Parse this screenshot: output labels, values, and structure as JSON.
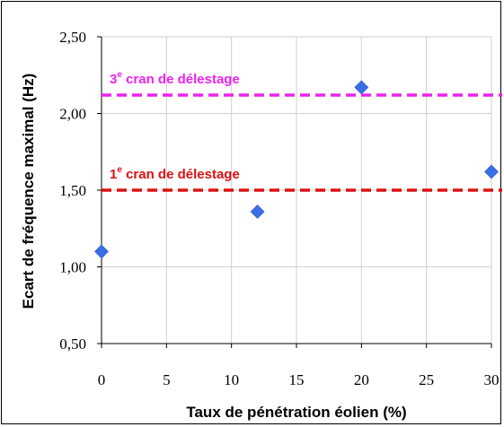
{
  "chart_data": {
    "type": "scatter",
    "xlabel": "Taux de pénétration éolien (%)",
    "ylabel": "Ecart de fréquence maximal (Hz)",
    "xlim": [
      0,
      30
    ],
    "ylim": [
      0.5,
      2.5
    ],
    "x_ticks": [
      "0",
      "5",
      "10",
      "15",
      "20",
      "25",
      "30"
    ],
    "y_ticks": [
      "0,50",
      "1,00",
      "1,50",
      "2,00",
      "2,50"
    ],
    "grid": true,
    "series": [
      {
        "color": "#3b6fe8",
        "marker": "diamond",
        "points": [
          {
            "x": 0,
            "y": 1.1
          },
          {
            "x": 12,
            "y": 1.36
          },
          {
            "x": 20,
            "y": 2.17
          },
          {
            "x": 30,
            "y": 1.62
          }
        ]
      }
    ],
    "reference_lines": [
      {
        "y": 2.12,
        "color": "#ee22ee",
        "style": "dashed",
        "label_base": "3",
        "label_sup": "e",
        "label_rest": " cran de délestage"
      },
      {
        "y": 1.5,
        "color": "#dd1111",
        "style": "dashed",
        "label_base": "1",
        "label_sup": "e",
        "label_rest": " cran de délestage"
      }
    ]
  }
}
